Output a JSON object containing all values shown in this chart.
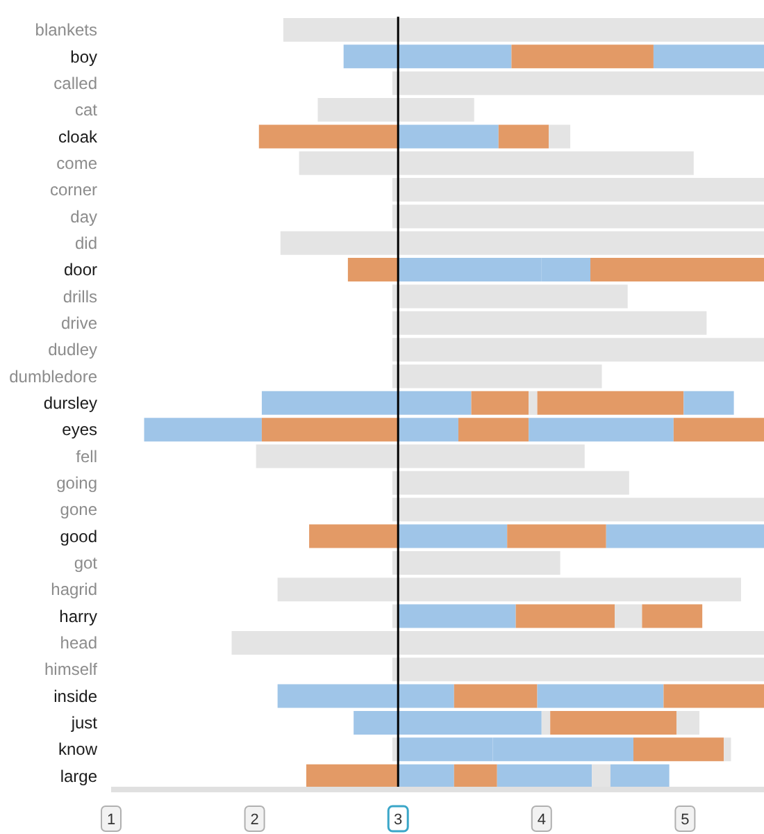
{
  "chart_data": {
    "type": "bar",
    "orientation": "horizontal",
    "categories": [
      "blankets",
      "boy",
      "called",
      "cat",
      "cloak",
      "come",
      "corner",
      "day",
      "did",
      "door",
      "drills",
      "drive",
      "dudley",
      "dumbledore",
      "dursley",
      "eyes",
      "fell",
      "going",
      "gone",
      "good",
      "got",
      "hagrid",
      "harry",
      "head",
      "himself",
      "inside",
      "just",
      "know",
      "large"
    ],
    "series": [
      {
        "base": [
          2.2,
          2.62,
          2.96,
          2.44,
          2.03,
          2.31,
          2.96,
          2.96,
          2.18,
          2.65,
          2.96,
          2.96,
          2.96,
          2.96,
          2.05,
          1.23,
          2.01,
          2.96,
          2.96,
          2.38,
          2.96,
          2.16,
          2.96,
          1.84,
          2.96,
          2.16,
          2.69,
          2.96,
          2.36
        ],
        "values": [
          0.8,
          0.38,
          0.04,
          0.56,
          0.97,
          0.69,
          0.04,
          0.04,
          0.82,
          0.35,
          0.04,
          0.04,
          0.04,
          0.04,
          0.95,
          0.82,
          0.99,
          0.04,
          0.04,
          0.62,
          0.04,
          0.84,
          0.04,
          1.16,
          0.04,
          0.84,
          0.31,
          0.04,
          0.64
        ],
        "colors": [
          "#e4e4e4",
          "#9fc5e8",
          "#e4e4e4",
          "#e4e4e4",
          "#e39a66",
          "#e4e4e4",
          "#e4e4e4",
          "#e4e4e4",
          "#e4e4e4",
          "#e39a66",
          "#e4e4e4",
          "#e4e4e4",
          "#e4e4e4",
          "#e4e4e4",
          "#9fc5e8",
          "#9fc5e8",
          "#e4e4e4",
          "#e4e4e4",
          "#e4e4e4",
          "#e39a66",
          "#e4e4e4",
          "#e4e4e4",
          "#e4e4e4",
          "#e4e4e4",
          "#e4e4e4",
          "#9fc5e8",
          "#9fc5e8",
          "#e4e4e4",
          "#e39a66"
        ]
      },
      {
        "base": [
          3,
          3,
          3,
          3,
          3,
          3,
          3,
          3,
          3,
          3,
          3,
          3,
          3,
          3,
          3,
          2.05,
          3,
          3,
          3,
          3,
          3,
          3,
          3,
          3,
          3,
          3,
          3,
          3,
          3
        ],
        "values": [
          2.55,
          0.79,
          2.55,
          0.53,
          0.7,
          2.06,
          2.55,
          2.55,
          2.55,
          1.0,
          1.6,
          2.15,
          2.55,
          1.42,
          0.51,
          0.95,
          1.3,
          1.61,
          2.55,
          0.76,
          1.13,
          2.39,
          0.82,
          2.55,
          2.55,
          0.39,
          1.0,
          0.66,
          0.39
        ],
        "colors": [
          "#e4e4e4",
          "#9fc5e8",
          "#e4e4e4",
          "#e4e4e4",
          "#9fc5e8",
          "#e4e4e4",
          "#e4e4e4",
          "#e4e4e4",
          "#e4e4e4",
          "#9fc5e8",
          "#e4e4e4",
          "#e4e4e4",
          "#e4e4e4",
          "#e4e4e4",
          "#9fc5e8",
          "#e39a66",
          "#e4e4e4",
          "#e4e4e4",
          "#e4e4e4",
          "#9fc5e8",
          "#e4e4e4",
          "#e4e4e4",
          "#9fc5e8",
          "#e4e4e4",
          "#e4e4e4",
          "#9fc5e8",
          "#9fc5e8",
          "#9fc5e8",
          "#9fc5e8"
        ]
      },
      {
        "base": [
          null,
          3.79,
          null,
          null,
          3.7,
          null,
          null,
          null,
          null,
          4.0,
          null,
          null,
          null,
          null,
          3.51,
          3,
          null,
          null,
          null,
          3.76,
          null,
          null,
          3.82,
          null,
          null,
          3.39,
          4.0,
          3.66,
          3.39
        ],
        "values": [
          null,
          0.99,
          null,
          null,
          0.35,
          null,
          null,
          null,
          null,
          0.34,
          null,
          null,
          null,
          null,
          0.4,
          0.42,
          null,
          null,
          null,
          0.69,
          null,
          null,
          0.69,
          null,
          null,
          0.58,
          0.06,
          0.98,
          0.3
        ],
        "colors": [
          "#e4e4e4",
          "#e39a66",
          "#e4e4e4",
          "#e4e4e4",
          "#e39a66",
          "#e4e4e4",
          "#e4e4e4",
          "#e4e4e4",
          "#e4e4e4",
          "#9fc5e8",
          "#e4e4e4",
          "#e4e4e4",
          "#e4e4e4",
          "#e4e4e4",
          "#e39a66",
          "#9fc5e8",
          "#e4e4e4",
          "#e4e4e4",
          "#e4e4e4",
          "#e39a66",
          "#e4e4e4",
          "#e4e4e4",
          "#e39a66",
          "#e4e4e4",
          "#e4e4e4",
          "#e39a66",
          "#e4e4e4",
          "#9fc5e8",
          "#e39a66"
        ]
      },
      {
        "base": [
          null,
          4.78,
          null,
          null,
          4.05,
          null,
          null,
          null,
          null,
          4.34,
          null,
          null,
          null,
          null,
          3.91,
          3.42,
          null,
          null,
          null,
          4.45,
          null,
          null,
          4.51,
          null,
          null,
          3.97,
          4.06,
          4.64,
          3.69
        ],
        "values": [
          null,
          0.77,
          null,
          null,
          0.15,
          null,
          null,
          null,
          null,
          1.21,
          null,
          null,
          null,
          null,
          0.06,
          0.49,
          null,
          null,
          null,
          1.1,
          null,
          null,
          0.19,
          null,
          null,
          0.88,
          0.88,
          0.63,
          0.66
        ],
        "colors": [
          "#e4e4e4",
          "#9fc5e8",
          "#e4e4e4",
          "#e4e4e4",
          "#e4e4e4",
          "#e4e4e4",
          "#e4e4e4",
          "#e4e4e4",
          "#e4e4e4",
          "#e39a66",
          "#e4e4e4",
          "#e4e4e4",
          "#e4e4e4",
          "#e4e4e4",
          "#e4e4e4",
          "#e39a66",
          "#e4e4e4",
          "#e4e4e4",
          "#e4e4e4",
          "#9fc5e8",
          "#e4e4e4",
          "#e4e4e4",
          "#e4e4e4",
          "#e4e4e4",
          "#e4e4e4",
          "#9fc5e8",
          "#e39a66",
          "#e39a66",
          "#9fc5e8"
        ]
      },
      {
        "base": [
          null,
          null,
          null,
          null,
          null,
          null,
          null,
          null,
          null,
          null,
          null,
          null,
          null,
          null,
          3.97,
          3.91,
          null,
          null,
          null,
          null,
          null,
          null,
          4.7,
          null,
          null,
          4.85,
          4.94,
          5.27,
          4.35
        ],
        "values": [
          null,
          null,
          null,
          null,
          null,
          null,
          null,
          null,
          null,
          null,
          null,
          null,
          null,
          null,
          1.02,
          1.01,
          null,
          null,
          null,
          null,
          null,
          null,
          0.42,
          null,
          null,
          0.7,
          0.16,
          0.05,
          0.13
        ],
        "colors": [
          "#e4e4e4",
          "#e4e4e4",
          "#e4e4e4",
          "#e4e4e4",
          "#e4e4e4",
          "#e4e4e4",
          "#e4e4e4",
          "#e4e4e4",
          "#e4e4e4",
          "#e4e4e4",
          "#e4e4e4",
          "#e4e4e4",
          "#e4e4e4",
          "#e4e4e4",
          "#e39a66",
          "#9fc5e8",
          "#e4e4e4",
          "#e4e4e4",
          "#e4e4e4",
          "#e4e4e4",
          "#e4e4e4",
          "#e4e4e4",
          "#e39a66",
          "#e4e4e4",
          "#e4e4e4",
          "#e39a66",
          "#e4e4e4",
          "#e4e4e4",
          "#e4e4e4"
        ]
      },
      {
        "base": [
          null,
          null,
          null,
          null,
          null,
          null,
          null,
          null,
          null,
          null,
          null,
          null,
          null,
          null,
          4.99,
          4.92,
          null,
          null,
          null,
          null,
          null,
          null,
          null,
          null,
          null,
          null,
          null,
          null,
          4.48
        ],
        "values": [
          null,
          null,
          null,
          null,
          null,
          null,
          null,
          null,
          null,
          null,
          null,
          null,
          null,
          null,
          0.35,
          0.63,
          null,
          null,
          null,
          null,
          null,
          null,
          null,
          null,
          null,
          null,
          null,
          null,
          0.41
        ],
        "colors": [
          "#e4e4e4",
          "#e4e4e4",
          "#e4e4e4",
          "#e4e4e4",
          "#e4e4e4",
          "#e4e4e4",
          "#e4e4e4",
          "#e4e4e4",
          "#e4e4e4",
          "#e4e4e4",
          "#e4e4e4",
          "#e4e4e4",
          "#e4e4e4",
          "#e4e4e4",
          "#9fc5e8",
          "#e39a66",
          "#e4e4e4",
          "#e4e4e4",
          "#e4e4e4",
          "#e4e4e4",
          "#e4e4e4",
          "#e4e4e4",
          "#e4e4e4",
          "#e4e4e4",
          "#e4e4e4",
          "#e4e4e4",
          "#e4e4e4",
          "#e4e4e4",
          "#9fc5e8"
        ]
      }
    ],
    "xlim": [
      1,
      5.55
    ],
    "xticks": [
      1,
      2,
      3,
      4,
      5
    ],
    "ref_lines": [
      {
        "axis": "x",
        "value": 3,
        "color": "#000000"
      }
    ],
    "grid": false,
    "legend": false
  }
}
